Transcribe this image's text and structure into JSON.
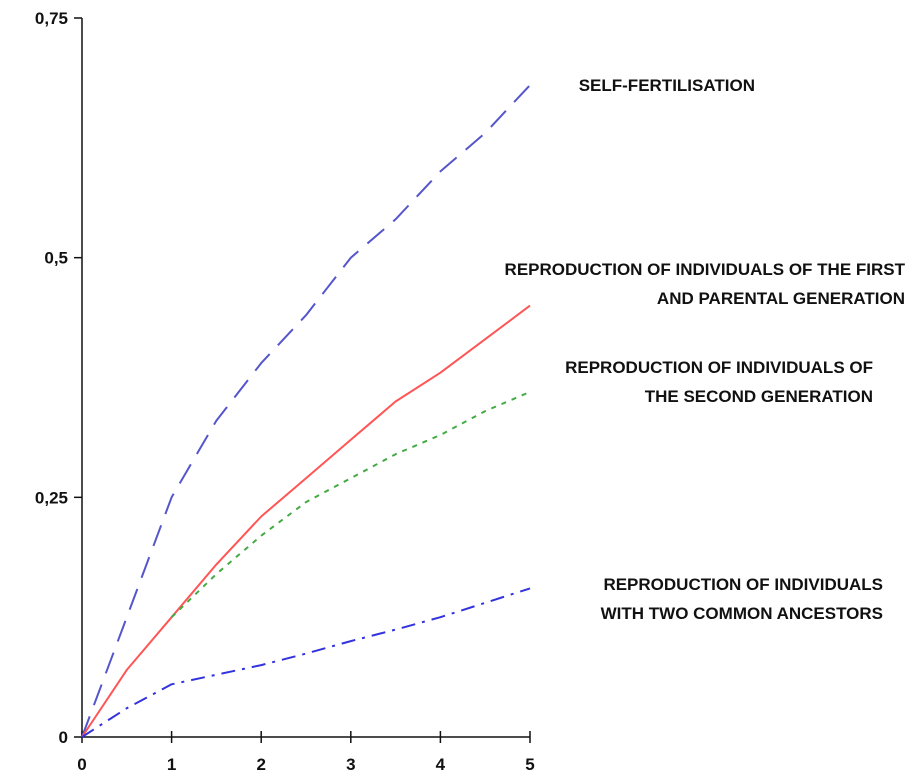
{
  "chart_data": {
    "type": "line",
    "title": "",
    "xlabel": "",
    "ylabel": "",
    "xlim": [
      0,
      5
    ],
    "ylim": [
      0,
      0.75
    ],
    "x_ticks": [
      0,
      1,
      2,
      3,
      4,
      5
    ],
    "x_tick_labels": [
      "0",
      "1",
      "2",
      "3",
      "4",
      "5"
    ],
    "y_ticks": [
      0,
      0.25,
      0.5,
      0.75
    ],
    "y_tick_labels": [
      "0",
      "0,25",
      "0,5",
      "0,75"
    ],
    "grid": false,
    "legend": "none",
    "series": [
      {
        "label_lines": [
          "SELF-FERTILISATION"
        ],
        "color": "#5555cc",
        "style": "dashed",
        "x": [
          0,
          0.5,
          1,
          1.5,
          2,
          2.5,
          3,
          3.5,
          4,
          4.5,
          5
        ],
        "values": [
          0,
          0.125,
          0.25,
          0.33,
          0.39,
          0.44,
          0.5,
          0.54,
          0.59,
          0.63,
          0.68
        ]
      },
      {
        "label_lines": [
          "REPRODUCTION OF INDIVIDUALS OF THE FIRST",
          "AND PARENTAL GENERATION"
        ],
        "color": "#ff5555",
        "style": "solid",
        "x": [
          0,
          0.5,
          1,
          1.5,
          2,
          2.5,
          3,
          3.5,
          4,
          4.5,
          5
        ],
        "values": [
          0,
          0.07,
          0.125,
          0.18,
          0.23,
          0.27,
          0.31,
          0.35,
          0.38,
          0.415,
          0.45
        ]
      },
      {
        "label_lines": [
          "REPRODUCTION OF INDIVIDUALS OF",
          "THE SECOND GENERATION"
        ],
        "color": "#44aa44",
        "style": "dotted",
        "x": [
          1,
          1.5,
          2,
          2.5,
          3,
          3.5,
          4,
          4.5,
          5
        ],
        "values": [
          0.125,
          0.17,
          0.21,
          0.245,
          0.27,
          0.295,
          0.315,
          0.34,
          0.36
        ]
      },
      {
        "label_lines": [
          "REPRODUCTION OF INDIVIDUALS",
          "WITH TWO COMMON ANCESTORS"
        ],
        "color": "#3333dd",
        "style": "dashdot",
        "x": [
          0,
          0.5,
          1,
          1.5,
          2,
          2.5,
          3,
          3.5,
          4,
          4.5,
          5
        ],
        "values": [
          0,
          0.03,
          0.055,
          0.065,
          0.075,
          0.087,
          0.1,
          0.112,
          0.125,
          0.14,
          0.155
        ]
      }
    ]
  }
}
